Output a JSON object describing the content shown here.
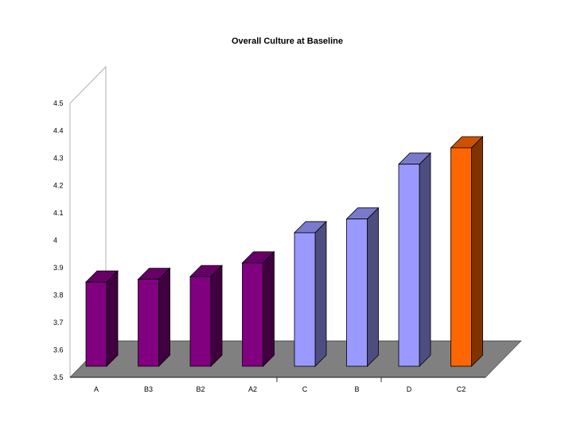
{
  "chart_data": {
    "type": "bar",
    "title": "Overall Culture at Baseline",
    "xlabel": "",
    "ylabel": "",
    "ylim": [
      3.5,
      4.5
    ],
    "yticks": [
      "3.5",
      "3.6",
      "3.7",
      "3.8",
      "3.9",
      "4",
      "4.1",
      "4.2",
      "4.3",
      "4.4",
      "4.5"
    ],
    "categories": [
      "A",
      "B3",
      "B2",
      "A2",
      "C",
      "B",
      "D",
      "C2"
    ],
    "values": [
      3.81,
      3.82,
      3.83,
      3.88,
      3.99,
      4.04,
      4.24,
      4.3
    ],
    "bar_colors": [
      "#800080",
      "#800080",
      "#800080",
      "#800080",
      "#9999ff",
      "#9999ff",
      "#9999ff",
      "#ff6600"
    ],
    "grid": false,
    "legend": "none",
    "floor_color": "#808080"
  }
}
